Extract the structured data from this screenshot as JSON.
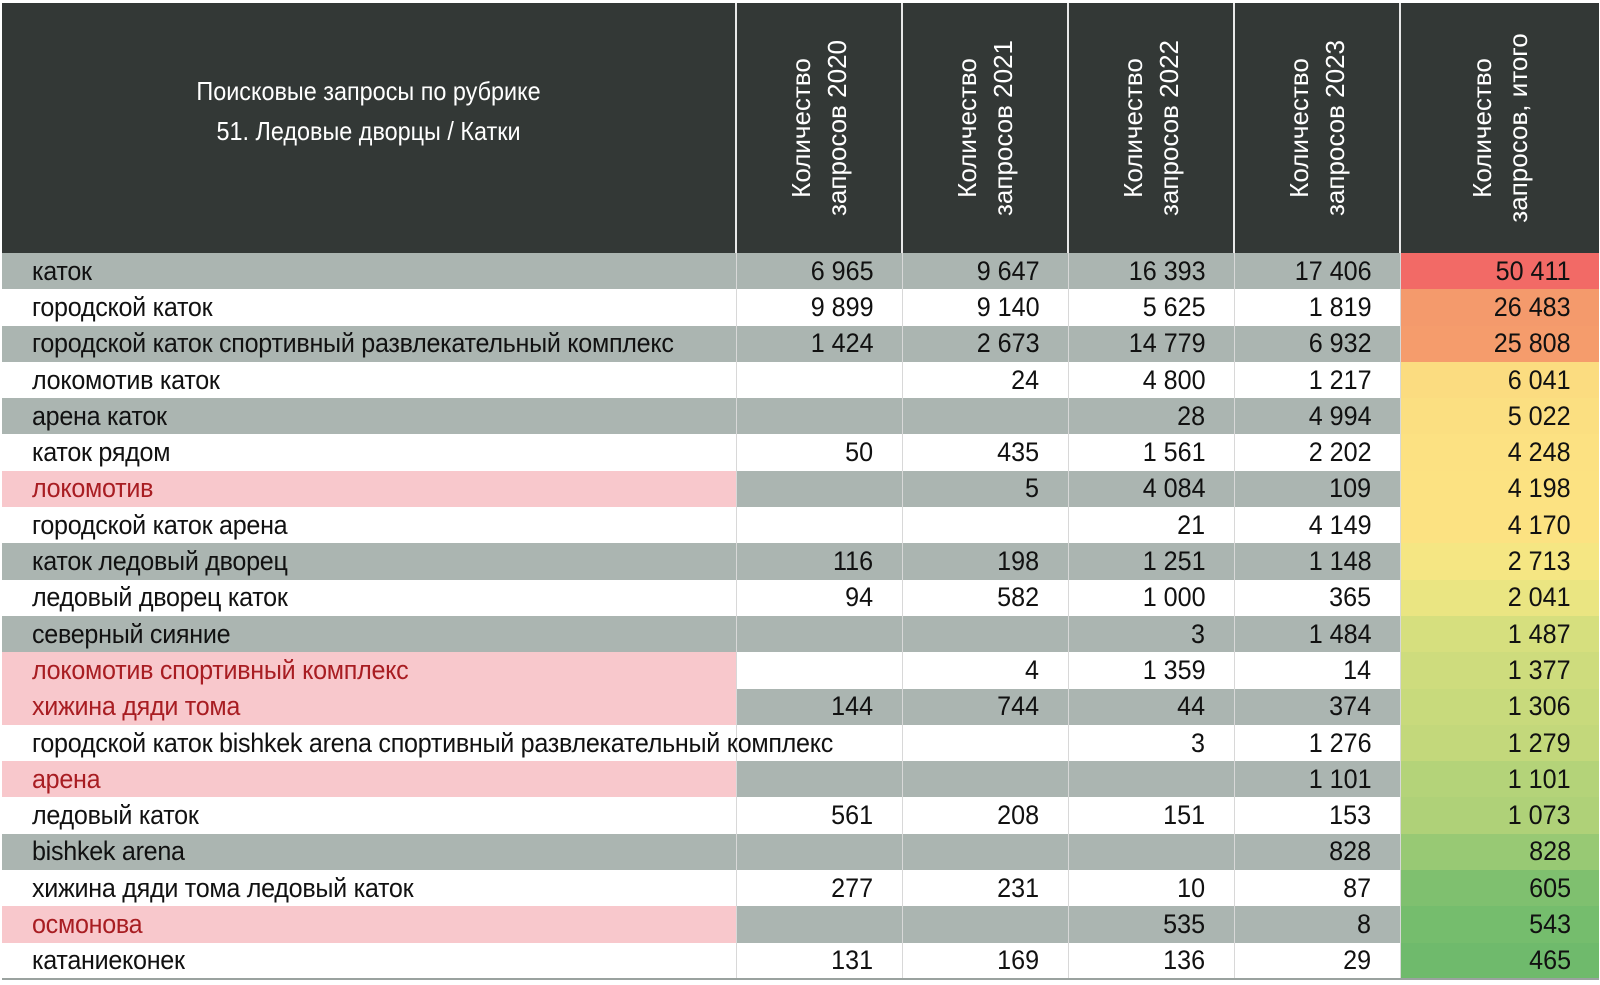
{
  "header": {
    "title_line1": "Поисковые запросы по рубрике",
    "title_line2": "51. Ледовые дворцы / Катки",
    "columns": [
      {
        "line1": "Количество",
        "line2": "запросов 2020"
      },
      {
        "line1": "Количество",
        "line2": "запросов 2021"
      },
      {
        "line1": "Количество",
        "line2": "запросов 2022"
      },
      {
        "line1": "Количество",
        "line2": "запросов 2023"
      },
      {
        "line1": "Количество",
        "line2": "запросов, итого"
      }
    ]
  },
  "rows": [
    {
      "name": "каток",
      "highlight": false,
      "v2020": "6 965",
      "v2021": "9 647",
      "v2022": "16 393",
      "v2023": "17 406",
      "total": "50 411",
      "total_color": "#f26a66"
    },
    {
      "name": "городской каток",
      "highlight": false,
      "v2020": "9 899",
      "v2021": "9 140",
      "v2022": "5 625",
      "v2023": "1 819",
      "total": "26 483",
      "total_color": "#f49a6c"
    },
    {
      "name": "городской каток спортивный развлекательный комплекс",
      "highlight": false,
      "v2020": "1 424",
      "v2021": "2 673",
      "v2022": "14 779",
      "v2023": "6 932",
      "total": "25 808",
      "total_color": "#f59c6c"
    },
    {
      "name": "локомотив каток",
      "highlight": false,
      "v2020": "",
      "v2021": "24",
      "v2022": "4 800",
      "v2023": "1 217",
      "total": "6 041",
      "total_color": "#fbdc80"
    },
    {
      "name": "арена каток",
      "highlight": false,
      "v2020": "",
      "v2021": "",
      "v2022": "28",
      "v2023": "4 994",
      "total": "5 022",
      "total_color": "#fbdf81"
    },
    {
      "name": "каток рядом",
      "highlight": false,
      "v2020": "50",
      "v2021": "435",
      "v2022": "1 561",
      "v2023": "2 202",
      "total": "4 248",
      "total_color": "#fce182"
    },
    {
      "name": "локомотив",
      "highlight": true,
      "v2020": "",
      "v2021": "5",
      "v2022": "4 084",
      "v2023": "109",
      "total": "4 198",
      "total_color": "#fce282"
    },
    {
      "name": "городской каток арена",
      "highlight": false,
      "v2020": "",
      "v2021": "",
      "v2022": "21",
      "v2023": "4 149",
      "total": "4 170",
      "total_color": "#fce282"
    },
    {
      "name": "каток ледовый дворец",
      "highlight": false,
      "v2020": "116",
      "v2021": "198",
      "v2022": "1 251",
      "v2023": "1 148",
      "total": "2 713",
      "total_color": "#f5e683"
    },
    {
      "name": "ледовый дворец каток",
      "highlight": false,
      "v2020": "94",
      "v2021": "582",
      "v2022": "1 000",
      "v2023": "365",
      "total": "2 041",
      "total_color": "#eae582"
    },
    {
      "name": "северный сияние",
      "highlight": false,
      "v2020": "",
      "v2021": "",
      "v2022": "3",
      "v2023": "1 484",
      "total": "1 487",
      "total_color": "#d6df7e"
    },
    {
      "name": "локомотив спортивный комплекс",
      "highlight": true,
      "v2020": "",
      "v2021": "4",
      "v2022": "1 359",
      "v2023": "14",
      "total": "1 377",
      "total_color": "#cedc7d"
    },
    {
      "name": "хижина дяди тома",
      "highlight": true,
      "v2020": "144",
      "v2021": "744",
      "v2022": "44",
      "v2023": "374",
      "total": "1 306",
      "total_color": "#c8da7c"
    },
    {
      "name": "городской каток bishkek arena спортивный развлекательный комплекс",
      "highlight": false,
      "v2020": "",
      "v2021": "",
      "v2022": "3",
      "v2023": "1 276",
      "total": "1 279",
      "total_color": "#c3d87b"
    },
    {
      "name": "арена",
      "highlight": true,
      "v2020": "",
      "v2021": "",
      "v2022": "",
      "v2023": "1 101",
      "total": "1 101",
      "total_color": "#b4d379"
    },
    {
      "name": "ледовый каток",
      "highlight": false,
      "v2020": "561",
      "v2021": "208",
      "v2022": "151",
      "v2023": "153",
      "total": "1 073",
      "total_color": "#afd178"
    },
    {
      "name": "bishkek arena",
      "highlight": false,
      "v2020": "",
      "v2021": "",
      "v2022": "",
      "v2023": "828",
      "total": "828",
      "total_color": "#98c974"
    },
    {
      "name": "хижина дяди тома ледовый каток",
      "highlight": false,
      "v2020": "277",
      "v2021": "231",
      "v2022": "10",
      "v2023": "87",
      "total": "605",
      "total_color": "#7fc06f"
    },
    {
      "name": "осмонова",
      "highlight": true,
      "v2020": "",
      "v2021": "",
      "v2022": "535",
      "v2023": "8",
      "total": "543",
      "total_color": "#75bd6d"
    },
    {
      "name": "катаниеконек",
      "highlight": false,
      "v2020": "131",
      "v2021": "169",
      "v2022": "136",
      "v2023": "29",
      "total": "465",
      "total_color": "#6fba6c"
    }
  ]
}
